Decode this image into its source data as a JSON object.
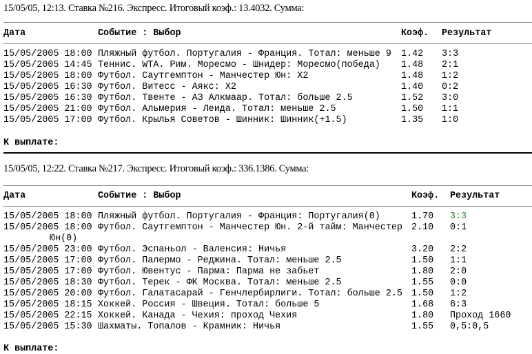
{
  "headers": {
    "date": "Дата",
    "event": "Событие : Выбор",
    "coef": "Коэф.",
    "result": "Результат"
  },
  "payout_label": "К выплате:",
  "colors": {
    "win_result": "#2e8b2e"
  },
  "bets": [
    {
      "title": "15/05/05, 12:13. Ставка №216. Экспресс. Итоговый коэф.: 13.4032. Сумма:",
      "rows": [
        {
          "date": "15/05/2005 18:00",
          "event": "Пляжный футбол. Португалия - Франция. Тотал: меньше 9",
          "coef": "1.42",
          "result": "3:3"
        },
        {
          "date": "15/05/2005 14:45",
          "event": "Теннис. WTA. Рим. Моресмо - Шнидер: Моресмо(победа)",
          "coef": "1.48",
          "result": "2:1"
        },
        {
          "date": "15/05/2005 18:00",
          "event": "Футбол. Саутгемптон - Манчестер Юн: X2",
          "coef": "1.48",
          "result": "1:2"
        },
        {
          "date": "15/05/2005 16:30",
          "event": "Футбол. Витесс - Аякс: X2",
          "coef": "1.40",
          "result": "0:2"
        },
        {
          "date": "15/05/2005 16:30",
          "event": "Футбол. Твенте - АЗ Алкмаар. Тотал: больше 2.5",
          "coef": "1.52",
          "result": "3:0"
        },
        {
          "date": "15/05/2005 21:00",
          "event": "Футбол. Альмерия - Леида. Тотал: меньше 2.5",
          "coef": "1.50",
          "result": "1:1"
        },
        {
          "date": "15/05/2005 17:00",
          "event": "Футбол. Крылья Советов - Шинник: Шинник(+1.5)",
          "coef": "1.35",
          "result": "1:0"
        }
      ]
    },
    {
      "title": "15/05/05, 12:22. Ставка №217. Экспресс. Итоговый коэф.: 336.1386. Сумма:",
      "rows": [
        {
          "date": "15/05/2005 18:00",
          "event": "Пляжный футбол. Португалия - Франция: Португалия(0)",
          "coef": "1.70",
          "result": "3:3",
          "highlight": true
        },
        {
          "date": "15/05/2005 18:00",
          "event": "Футбол. Саутгемптон - Манчестер Юн. 2-й тайм: Манчестер",
          "event_cont": "Юн(0)",
          "coef": "2.10",
          "result": "0:1"
        },
        {
          "date": "15/05/2005 23:00",
          "event": "Футбол. Эспаньол - Валенсия: Ничья",
          "coef": "3.20",
          "result": "2:2"
        },
        {
          "date": "15/05/2005 17:00",
          "event": "Футбол. Палермо - Реджина. Тотал: меньше 2.5",
          "coef": "1.50",
          "result": "1:1"
        },
        {
          "date": "15/05/2005 17:00",
          "event": "Футбол. Ювентус - Парма: Парма не забьет",
          "coef": "1.80",
          "result": "2:0"
        },
        {
          "date": "15/05/2005 18:30",
          "event": "Футбол. Терек - ФК Москва. Тотал: меньше 2.5",
          "coef": "1.55",
          "result": "0:0"
        },
        {
          "date": "15/05/2005 20:00",
          "event": "Футбол. Галатасарай - Генчлербирлиги. Тотал: больше 2.5",
          "coef": "1.50",
          "result": "1:2"
        },
        {
          "date": "15/05/2005 18:15",
          "event": "Хоккей. Россия - Швеция. Тотал: больше 5",
          "coef": "1.68",
          "result": "6:3"
        },
        {
          "date": "15/05/2005 22:15",
          "event": "Хоккей. Канада - Чехия: проход Чехия",
          "coef": "1.80",
          "result": "Проход 1660"
        },
        {
          "date": "15/05/2005 15:30",
          "event": "Шахматы. Топалов - Крамник: Ничья",
          "coef": "1.55",
          "result": "0,5:0,5"
        }
      ]
    }
  ]
}
